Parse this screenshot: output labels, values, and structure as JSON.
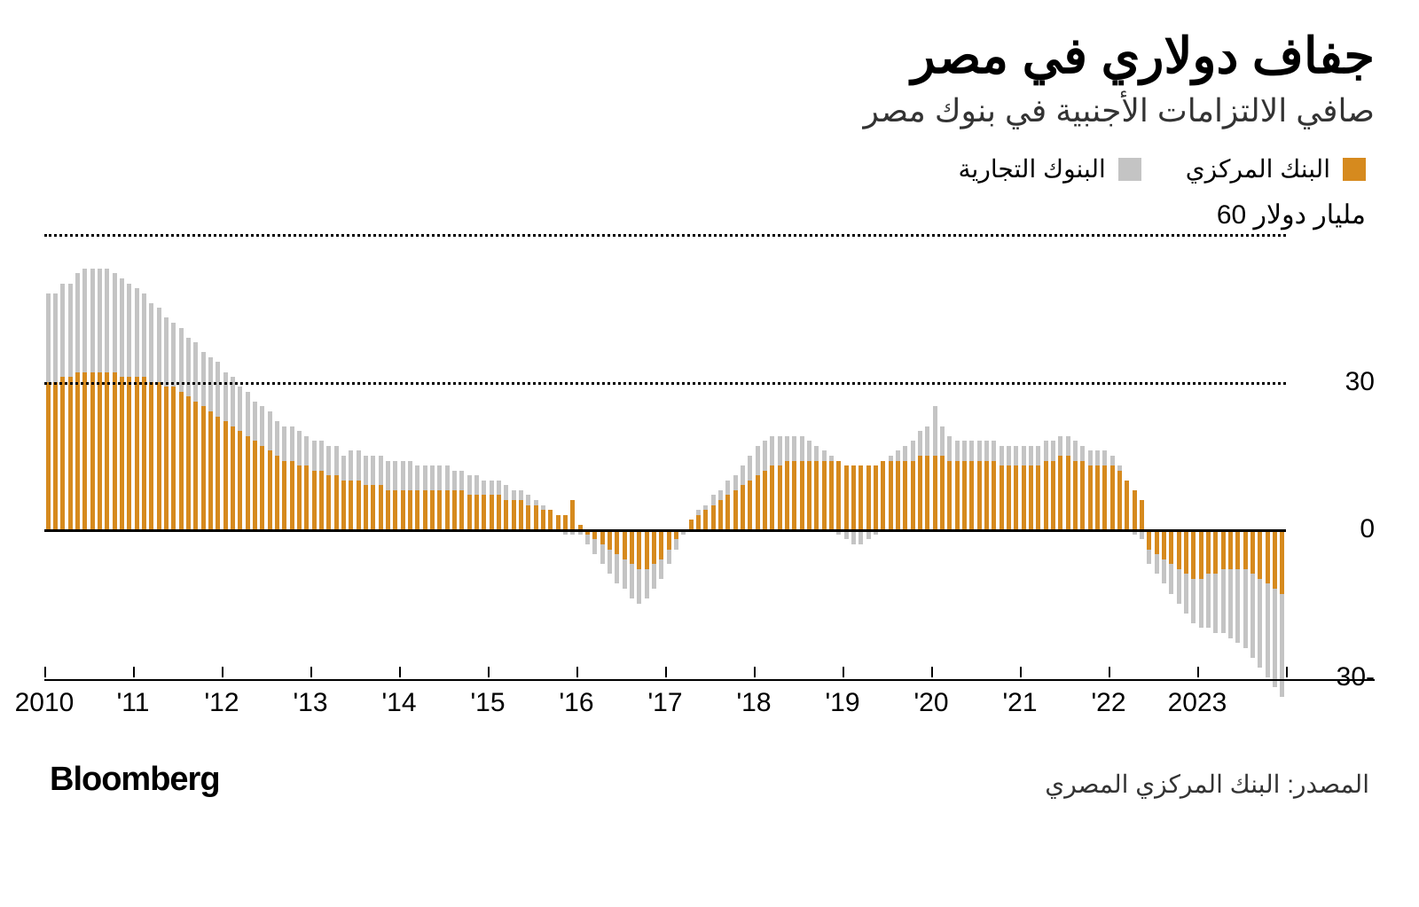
{
  "title": "جفاف دولاري في مصر",
  "subtitle": "صافي الالتزامات الأجنبية في بنوك مصر",
  "y_unit_label": "60 مليار دولار",
  "brand": "Bloomberg",
  "source": "المصدر: البنك المركزي المصري",
  "legend": [
    {
      "label": "البنك المركزي",
      "color": "#d68a1e"
    },
    {
      "label": "البنوك التجارية",
      "color": "#c4c4c4"
    }
  ],
  "chart": {
    "type": "stacked-bar",
    "background_color": "#ffffff",
    "grid_color_dotted": "#000000",
    "zero_line_color": "#000000",
    "series_colors": {
      "central": "#d68a1e",
      "commercial": "#c4c4c4"
    },
    "ylim": [
      -30,
      60
    ],
    "yticks": [
      {
        "v": 60,
        "label": "",
        "style": "dotted"
      },
      {
        "v": 30,
        "label": "30",
        "style": "dotted"
      },
      {
        "v": 0,
        "label": "0",
        "style": "solid"
      },
      {
        "v": -30,
        "label": "30-",
        "style": "none"
      }
    ],
    "xticks": [
      {
        "i": 0,
        "label": "2010"
      },
      {
        "i": 12,
        "label": "'11"
      },
      {
        "i": 24,
        "label": "'12"
      },
      {
        "i": 36,
        "label": "'13"
      },
      {
        "i": 48,
        "label": "'14"
      },
      {
        "i": 60,
        "label": "'15"
      },
      {
        "i": 72,
        "label": "'16"
      },
      {
        "i": 84,
        "label": "'17"
      },
      {
        "i": 96,
        "label": "'18"
      },
      {
        "i": 108,
        "label": "'19"
      },
      {
        "i": 120,
        "label": "'20"
      },
      {
        "i": 132,
        "label": "'21"
      },
      {
        "i": 144,
        "label": "'22"
      },
      {
        "i": 156,
        "label": "2023"
      }
    ],
    "bar_gap_ratio": 0.38,
    "n": 168,
    "central": [
      30,
      30,
      31,
      31,
      32,
      32,
      32,
      32,
      32,
      32,
      31,
      31,
      31,
      31,
      30,
      30,
      29,
      29,
      28,
      27,
      26,
      25,
      24,
      23,
      22,
      21,
      20,
      19,
      18,
      17,
      16,
      15,
      14,
      14,
      13,
      13,
      12,
      12,
      11,
      11,
      10,
      10,
      10,
      9,
      9,
      9,
      8,
      8,
      8,
      8,
      8,
      8,
      8,
      8,
      8,
      8,
      8,
      7,
      7,
      7,
      7,
      7,
      6,
      6,
      6,
      5,
      5,
      4,
      4,
      3,
      3,
      6,
      1,
      -1,
      -2,
      -3,
      -4,
      -5,
      -6,
      -7,
      -8,
      -8,
      -7,
      -6,
      -4,
      -2,
      0,
      2,
      3,
      4,
      5,
      6,
      7,
      8,
      9,
      10,
      11,
      12,
      13,
      13,
      14,
      14,
      14,
      14,
      14,
      14,
      14,
      14,
      13,
      13,
      13,
      13,
      13,
      14,
      14,
      14,
      14,
      14,
      15,
      15,
      15,
      15,
      14,
      14,
      14,
      14,
      14,
      14,
      14,
      13,
      13,
      13,
      13,
      13,
      13,
      14,
      14,
      15,
      15,
      14,
      14,
      13,
      13,
      13,
      13,
      12,
      10,
      8,
      6,
      -4,
      -5,
      -6,
      -7,
      -8,
      -9,
      -10,
      -10,
      -9,
      -9,
      -8,
      -8,
      -8,
      -8,
      -9,
      -10,
      -11,
      -12,
      -13
    ],
    "commercial": [
      18,
      18,
      19,
      19,
      20,
      21,
      21,
      21,
      21,
      20,
      20,
      19,
      18,
      17,
      16,
      15,
      14,
      13,
      13,
      12,
      12,
      11,
      11,
      11,
      10,
      10,
      9,
      9,
      8,
      8,
      8,
      7,
      7,
      7,
      7,
      6,
      6,
      6,
      6,
      6,
      5,
      6,
      6,
      6,
      6,
      6,
      6,
      6,
      6,
      6,
      5,
      5,
      5,
      5,
      5,
      4,
      4,
      4,
      4,
      3,
      3,
      3,
      3,
      2,
      2,
      2,
      1,
      1,
      0,
      0,
      -1,
      -1,
      -1,
      -2,
      -3,
      -4,
      -5,
      -6,
      -6,
      -7,
      -7,
      -6,
      -5,
      -4,
      -3,
      -2,
      -1,
      0,
      1,
      1,
      2,
      2,
      3,
      3,
      4,
      5,
      6,
      6,
      6,
      6,
      5,
      5,
      5,
      4,
      3,
      2,
      1,
      -1,
      -2,
      -3,
      -3,
      -2,
      -1,
      0,
      1,
      2,
      3,
      4,
      5,
      6,
      10,
      6,
      5,
      4,
      4,
      4,
      4,
      4,
      4,
      4,
      4,
      4,
      4,
      4,
      4,
      4,
      4,
      4,
      4,
      4,
      3,
      3,
      3,
      3,
      2,
      1,
      0,
      -1,
      -2,
      -3,
      -4,
      -5,
      -6,
      -7,
      -8,
      -9,
      -10,
      -11,
      -12,
      -13,
      -14,
      -15,
      -16,
      -17,
      -18,
      -19,
      -20,
      -21
    ]
  }
}
